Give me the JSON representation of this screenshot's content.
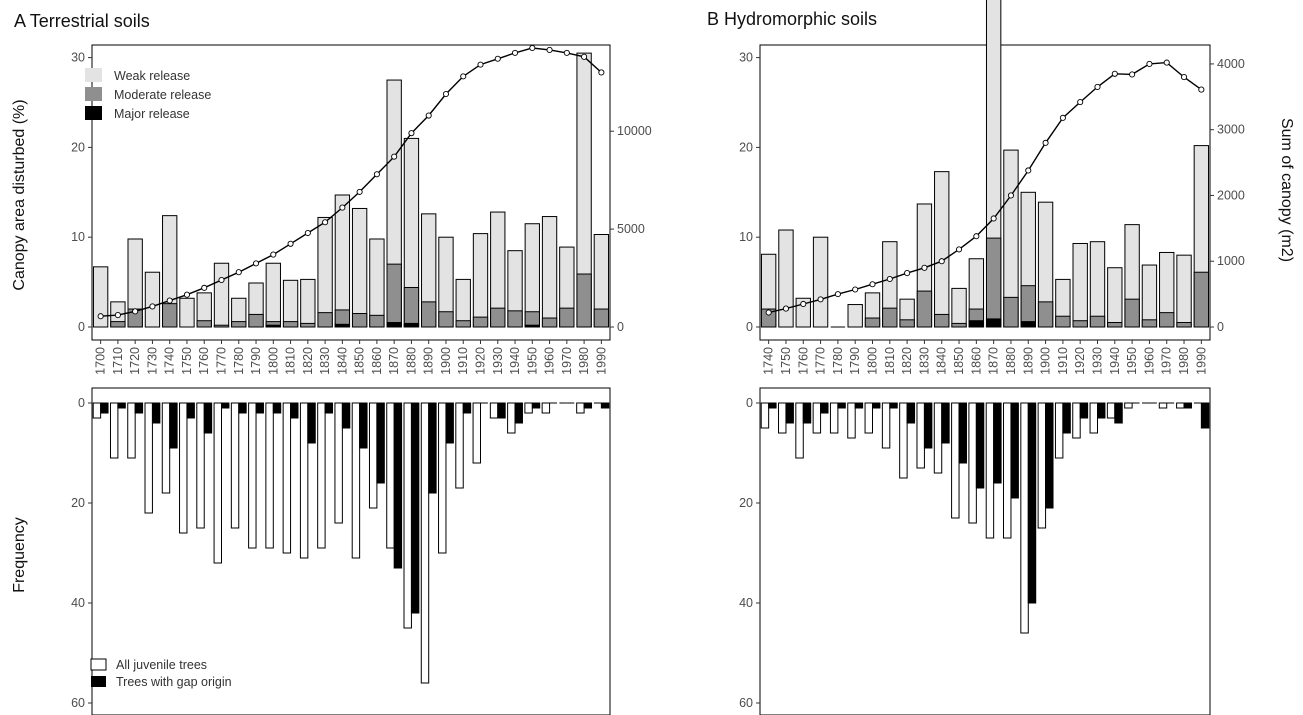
{
  "chart_data": [
    {
      "id": "A-top",
      "type": "bar",
      "title": "A Terrestrial soils",
      "ylabel": "Canopy area disturbed (%)",
      "y2label": "",
      "ylim": [
        0,
        30
      ],
      "y2lim": [
        0,
        14000
      ],
      "yticks": [
        0,
        10,
        20,
        30
      ],
      "y2ticks": [
        0,
        5000,
        10000
      ],
      "categories": [
        "1700",
        "1710",
        "1720",
        "1730",
        "1740",
        "1750",
        "1760",
        "1770",
        "1780",
        "1790",
        "1800",
        "1810",
        "1820",
        "1830",
        "1840",
        "1850",
        "1860",
        "1870",
        "1880",
        "1890",
        "1900",
        "1910",
        "1920",
        "1930",
        "1940",
        "1950",
        "1960",
        "1970",
        "1980",
        "1990"
      ],
      "series": [
        {
          "name": "Weak release",
          "color": "#e3e3e3",
          "values": [
            6.7,
            2.2,
            7.8,
            6.1,
            9.8,
            3.2,
            3.1,
            6.9,
            2.6,
            3.5,
            6.5,
            4.6,
            4.9,
            10.6,
            12.8,
            11.7,
            8.5,
            20.5,
            16.6,
            9.8,
            8.3,
            4.6,
            9.3,
            10.7,
            6.7,
            9.8,
            11.3,
            6.8,
            24.6,
            8.3
          ]
        },
        {
          "name": "Moderate release",
          "color": "#8f8f8f",
          "values": [
            0,
            0.6,
            2.0,
            0,
            2.6,
            0,
            0.7,
            0.2,
            0.6,
            1.4,
            0.4,
            0.6,
            0.4,
            1.6,
            1.6,
            1.5,
            1.3,
            6.5,
            4.0,
            2.8,
            1.7,
            0.7,
            1.1,
            2.1,
            1.8,
            1.5,
            1.0,
            2.1,
            5.9,
            2.0
          ]
        },
        {
          "name": "Major release",
          "color": "#000000",
          "values": [
            0,
            0,
            0,
            0,
            0,
            0,
            0,
            0,
            0,
            0,
            0.2,
            0,
            0,
            0,
            0.3,
            0,
            0,
            0.5,
            0.4,
            0,
            0,
            0,
            0,
            0,
            0,
            0.2,
            0,
            0,
            0,
            0
          ]
        }
      ],
      "line": {
        "name": "Sum of canopy",
        "values": [
          550,
          610,
          800,
          1050,
          1350,
          1650,
          2000,
          2400,
          2800,
          3250,
          3700,
          4250,
          4800,
          5350,
          6100,
          6900,
          7800,
          8700,
          9900,
          10800,
          11900,
          12800,
          13400,
          13700,
          14000,
          14250,
          14150,
          14000,
          13800,
          13000
        ]
      },
      "legend": "top-left"
    },
    {
      "id": "A-bottom",
      "type": "bar",
      "ylabel": "Frequency",
      "ylim": [
        0,
        60
      ],
      "yticks": [
        0,
        20,
        40,
        60
      ],
      "inverted": true,
      "categories": [
        "1700",
        "1710",
        "1720",
        "1730",
        "1740",
        "1750",
        "1760",
        "1770",
        "1780",
        "1790",
        "1800",
        "1810",
        "1820",
        "1830",
        "1840",
        "1850",
        "1860",
        "1870",
        "1880",
        "1890",
        "1900",
        "1910",
        "1920",
        "1930",
        "1940",
        "1950",
        "1960",
        "1970",
        "1980",
        "1990"
      ],
      "series": [
        {
          "name": "All juvenile trees",
          "color": "#ffffff",
          "values": [
            3,
            11,
            11,
            22,
            18,
            26,
            25,
            32,
            25,
            29,
            29,
            30,
            31,
            29,
            24,
            31,
            21,
            29,
            45,
            56,
            30,
            17,
            12,
            3,
            6,
            2,
            2,
            0,
            2,
            0
          ]
        },
        {
          "name": "Trees with gap origin",
          "color": "#000000",
          "values": [
            2,
            1,
            2,
            4,
            9,
            3,
            6,
            1,
            2,
            2,
            2,
            3,
            8,
            2,
            5,
            9,
            16,
            33,
            42,
            18,
            8,
            2,
            0,
            3,
            4,
            1,
            0,
            0,
            1,
            1
          ]
        }
      ],
      "legend": "bottom-left"
    },
    {
      "id": "B-top",
      "type": "bar",
      "title": "B Hydromorphic soils",
      "ylabel": "",
      "y2label": "Sum of canopy (m2)",
      "ylim": [
        0,
        30
      ],
      "y2lim": [
        0,
        4000
      ],
      "yticks": [
        0,
        10,
        20,
        30
      ],
      "y2ticks": [
        0,
        1000,
        2000,
        3000,
        4000
      ],
      "categories": [
        "1740",
        "1750",
        "1760",
        "1770",
        "1780",
        "1790",
        "1800",
        "1810",
        "1820",
        "1830",
        "1840",
        "1850",
        "1860",
        "1870",
        "1880",
        "1890",
        "1900",
        "1910",
        "1920",
        "1930",
        "1940",
        "1950",
        "1960",
        "1970",
        "1980",
        "1990"
      ],
      "series": [
        {
          "name": "Weak release",
          "color": "#e3e3e3",
          "values": [
            6.1,
            10.8,
            3.2,
            10.0,
            0,
            2.5,
            2.8,
            7.4,
            2.3,
            9.7,
            15.9,
            3.9,
            5.6,
            27.7,
            16.4,
            10.4,
            11.1,
            4.1,
            8.6,
            8.3,
            6.1,
            8.3,
            6.1,
            6.7,
            7.5,
            14.1
          ]
        },
        {
          "name": "Moderate release",
          "color": "#8f8f8f",
          "values": [
            2.0,
            0,
            0,
            0,
            0,
            0,
            1.0,
            2.1,
            0.8,
            4.0,
            1.4,
            0.4,
            1.3,
            9.0,
            3.3,
            4.0,
            2.8,
            1.2,
            0.7,
            1.2,
            0.5,
            3.1,
            0.8,
            1.6,
            0.5,
            6.1
          ]
        },
        {
          "name": "Major release",
          "color": "#000000",
          "values": [
            0,
            0,
            0,
            0,
            0,
            0,
            0,
            0,
            0,
            0,
            0,
            0,
            0.7,
            0.9,
            0,
            0.6,
            0,
            0,
            0,
            0,
            0,
            0,
            0,
            0,
            0,
            0
          ]
        }
      ],
      "line": {
        "name": "Sum of canopy",
        "values": [
          220,
          280,
          350,
          420,
          500,
          570,
          650,
          730,
          820,
          900,
          1000,
          1180,
          1380,
          1650,
          2000,
          2380,
          2800,
          3180,
          3420,
          3650,
          3850,
          3840,
          4000,
          4020,
          3800,
          3610
        ]
      }
    },
    {
      "id": "B-bottom",
      "type": "bar",
      "ylabel": "",
      "ylim": [
        0,
        60
      ],
      "yticks": [
        0,
        20,
        40,
        60
      ],
      "inverted": true,
      "categories": [
        "1740",
        "1750",
        "1760",
        "1770",
        "1780",
        "1790",
        "1800",
        "1810",
        "1820",
        "1830",
        "1840",
        "1850",
        "1860",
        "1870",
        "1880",
        "1890",
        "1900",
        "1910",
        "1920",
        "1930",
        "1940",
        "1950",
        "1960",
        "1970",
        "1980",
        "1990"
      ],
      "series": [
        {
          "name": "All juvenile trees",
          "color": "#ffffff",
          "values": [
            5,
            6,
            11,
            6,
            6,
            7,
            6,
            9,
            15,
            13,
            14,
            23,
            24,
            27,
            27,
            46,
            25,
            11,
            7,
            6,
            3,
            1,
            0,
            1,
            1,
            0
          ]
        },
        {
          "name": "Trees with gap origin",
          "color": "#000000",
          "values": [
            1,
            4,
            4,
            2,
            1,
            1,
            1,
            1,
            4,
            9,
            8,
            12,
            17,
            16,
            19,
            40,
            21,
            6,
            3,
            3,
            4,
            0,
            0,
            0,
            1,
            5
          ]
        }
      ]
    }
  ]
}
